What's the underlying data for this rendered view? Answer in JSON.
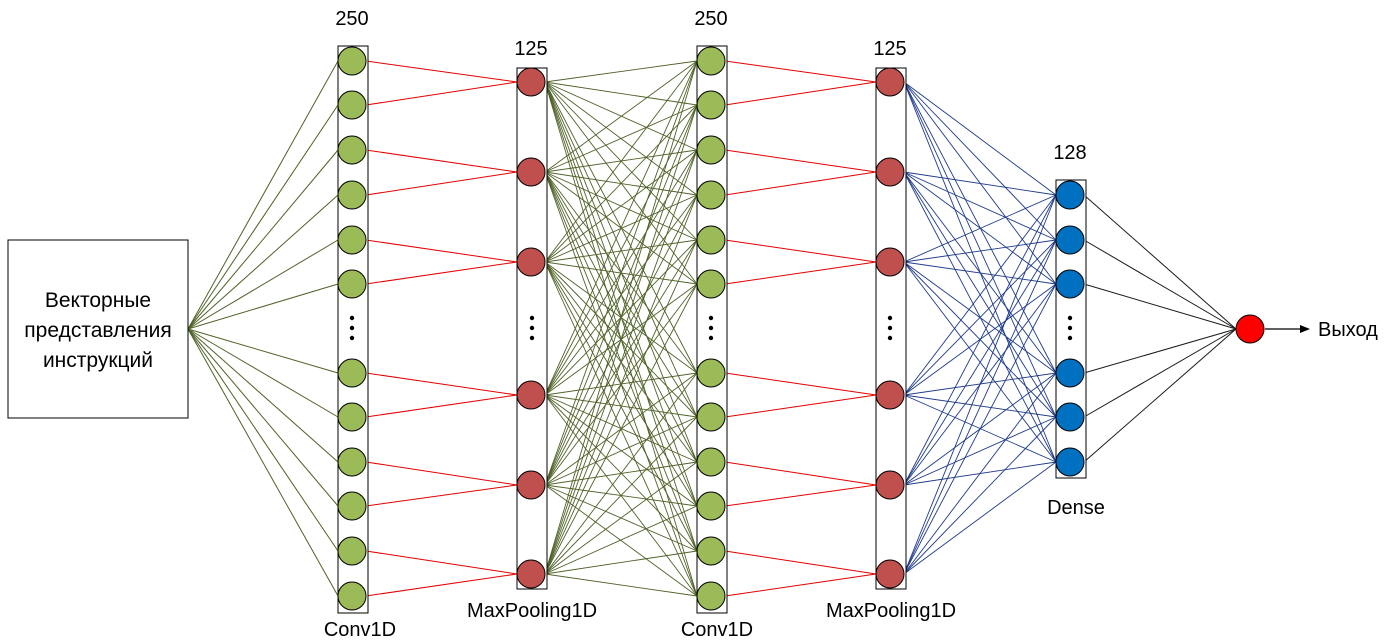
{
  "input_box": {
    "lines": [
      "Векторные",
      "представления",
      "инструкций"
    ]
  },
  "layers": [
    {
      "id": "conv1",
      "count": "250",
      "name": "Conv1D",
      "node_color": "#9BBB59"
    },
    {
      "id": "pool1",
      "count": "125",
      "name": "MaxPooling1D",
      "node_color": "#C0504D"
    },
    {
      "id": "conv2",
      "count": "250",
      "name": "Conv1D",
      "node_color": "#9BBB59"
    },
    {
      "id": "pool2",
      "count": "125",
      "name": "MaxPooling1D",
      "node_color": "#C0504D"
    },
    {
      "id": "dense",
      "count": "128",
      "name": "Dense",
      "node_color": "#0070C0"
    }
  ],
  "output": {
    "label": "Выход",
    "node_color": "#FF0000"
  },
  "colors": {
    "green_connections": "#4F6228",
    "red_connections": "#E60000",
    "blue_connections": "#1F3A8A",
    "dark_connections": "#1A1A1A"
  }
}
